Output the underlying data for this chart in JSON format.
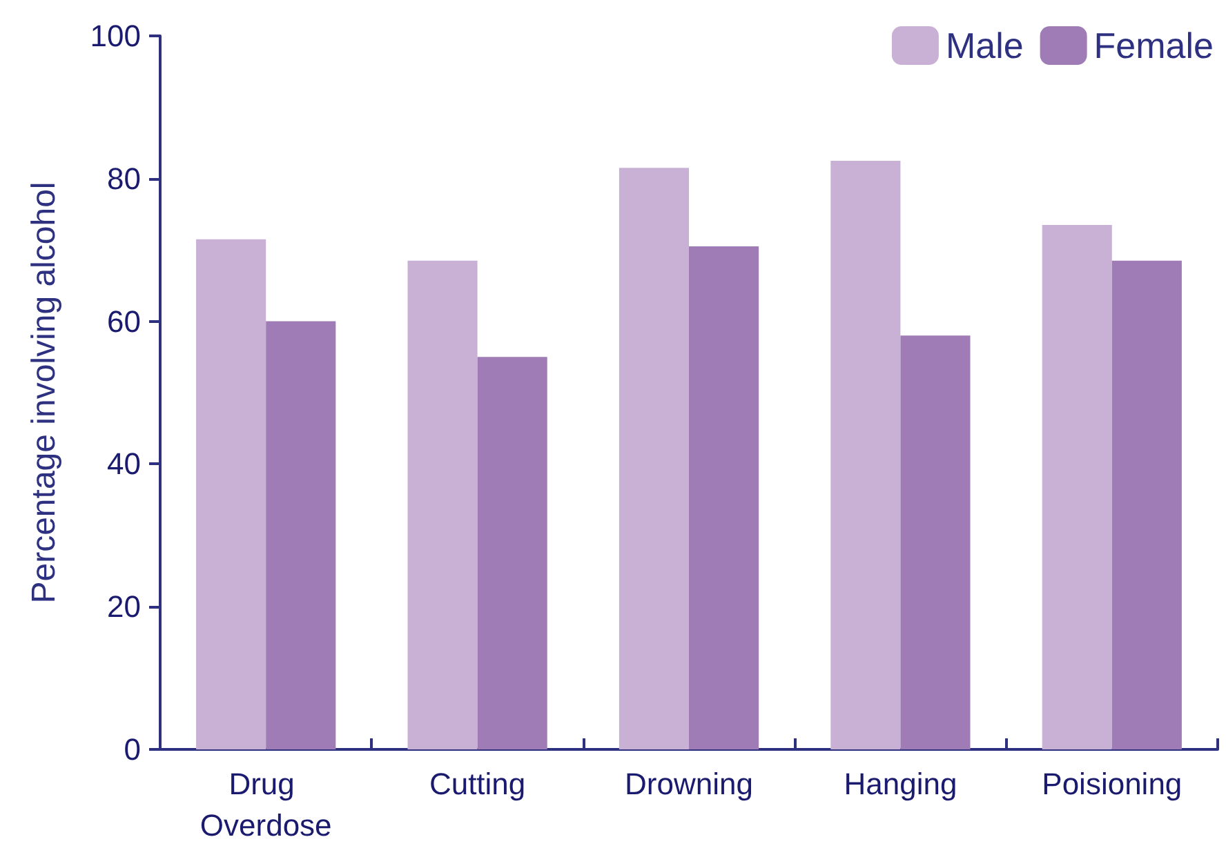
{
  "chart_data": {
    "type": "bar",
    "ylabel": "Percentage involving alcohol",
    "categories": [
      "Drug Overdose",
      "Cutting",
      "Drowning",
      "Hanging",
      "Poisioning"
    ],
    "series": [
      {
        "name": "Male",
        "color": "#c9b1d6",
        "values": [
          71.5,
          68.5,
          81.5,
          82.5,
          73.5
        ]
      },
      {
        "name": "Female",
        "color": "#a07cb6",
        "values": [
          60,
          55,
          70.5,
          58,
          68.5
        ]
      }
    ],
    "ylim": [
      0,
      100
    ],
    "yticks": [
      0,
      20,
      40,
      60,
      80,
      100
    ],
    "grid": false,
    "legend": "top right"
  }
}
